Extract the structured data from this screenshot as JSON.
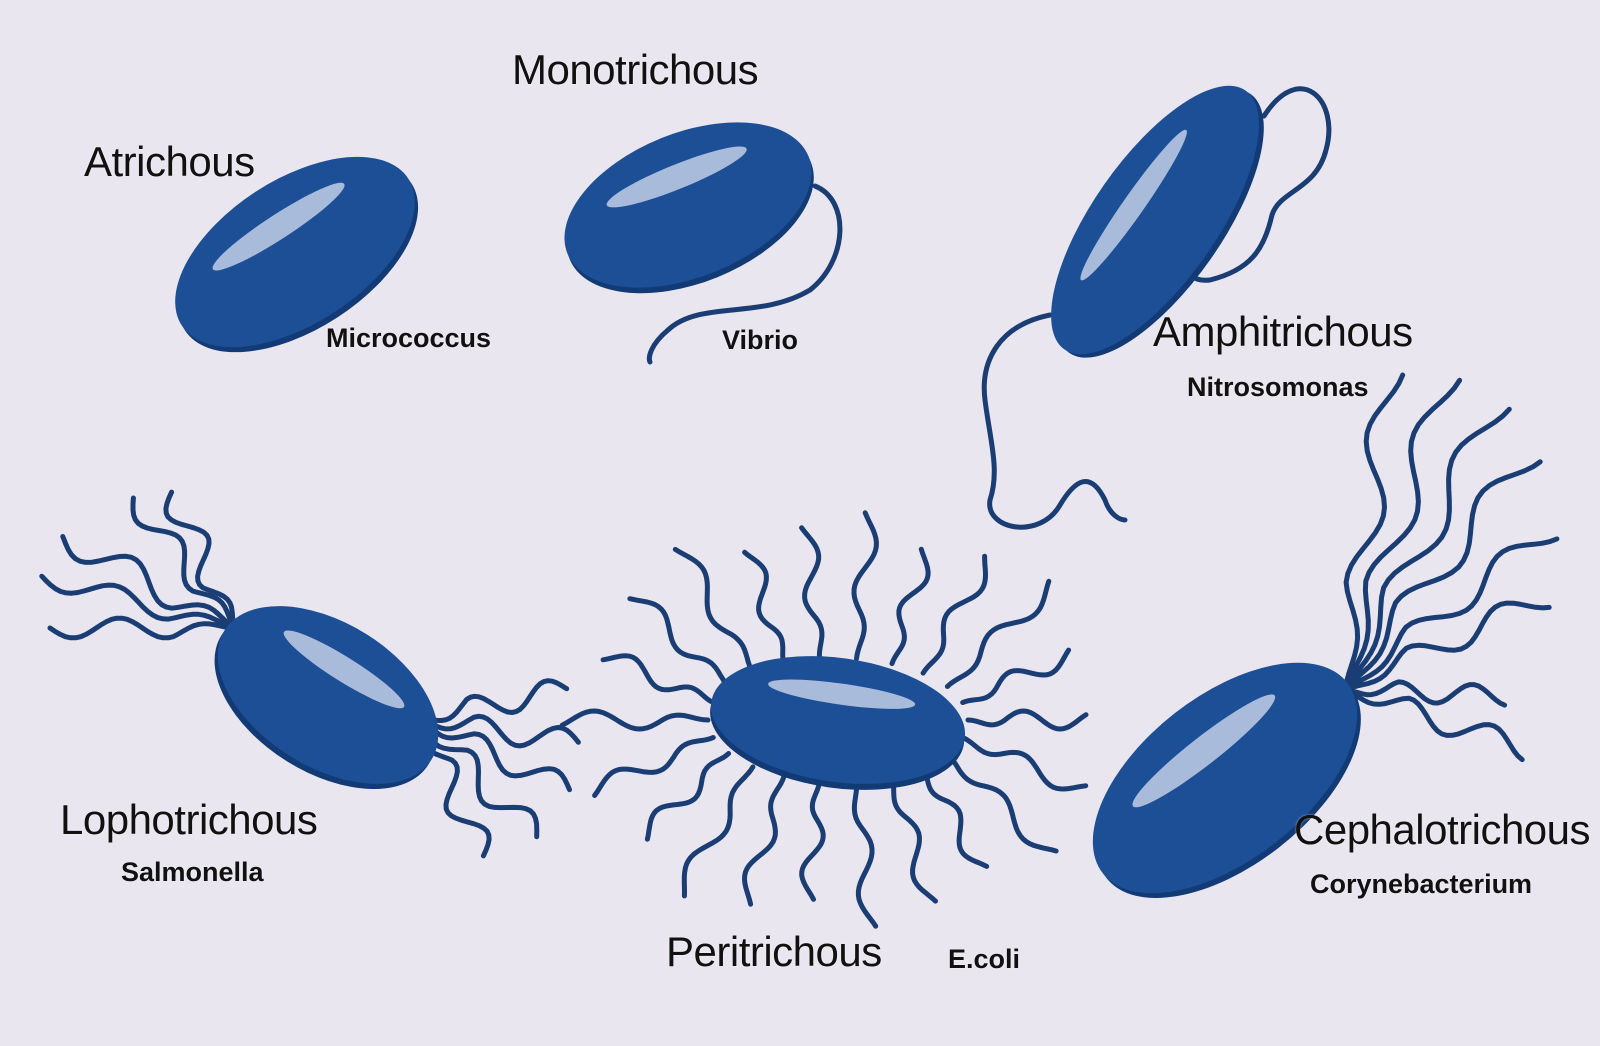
{
  "colors": {
    "background": "#e9e6ef",
    "cell_body": "#1d4f96",
    "cell_shadow": "#123a75",
    "cell_highlight": "#b9c7e2",
    "flagella": "#1a3d74"
  },
  "bacteria": [
    {
      "key": "atrichous",
      "type": "Atrichous",
      "example": "Micrococcus"
    },
    {
      "key": "monotrichous",
      "type": "Monotrichous",
      "example": "Vibrio"
    },
    {
      "key": "amphitrichous",
      "type": "Amphitrichous",
      "example": "Nitrosomonas"
    },
    {
      "key": "lophotrichous",
      "type": "Lophotrichous",
      "example": "Salmonella"
    },
    {
      "key": "peritrichous",
      "type": "Peritrichous",
      "example": "E.coli"
    },
    {
      "key": "cephalotrichous",
      "type": "Cephalotrichous",
      "example": "Corynebacterium"
    }
  ]
}
